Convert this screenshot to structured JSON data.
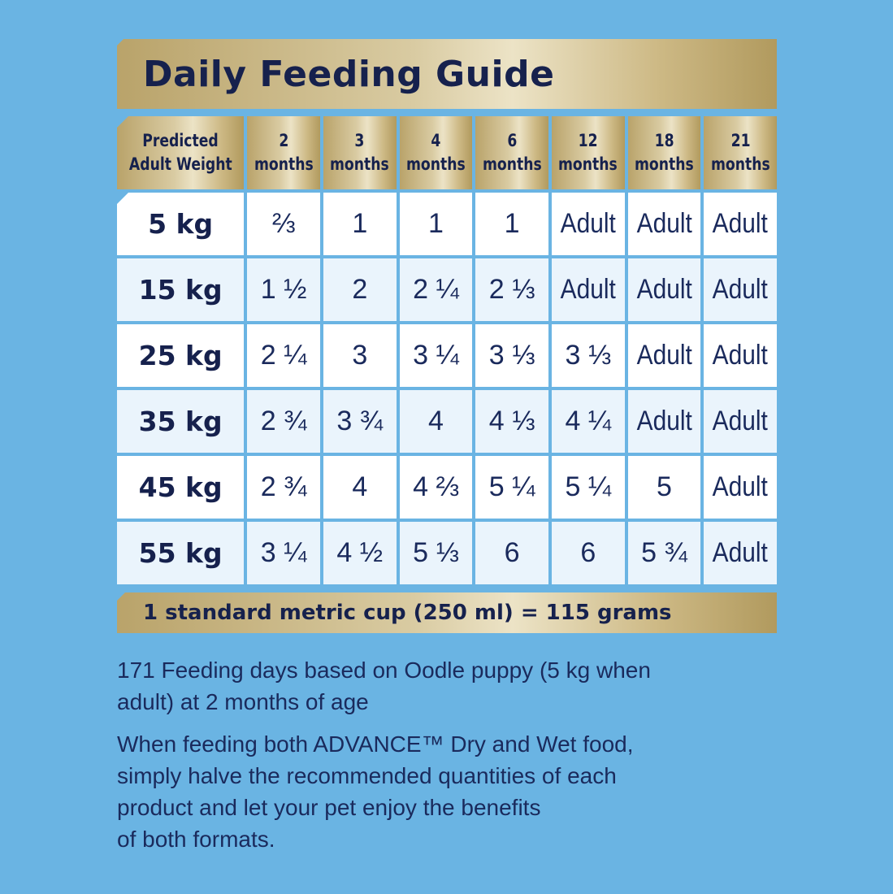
{
  "title": "Daily Feeding Guide",
  "table": {
    "header_first_line1": "Predicted",
    "header_first_line2": "Adult Weight",
    "columns": [
      {
        "num": "2",
        "unit": "months"
      },
      {
        "num": "3",
        "unit": "months"
      },
      {
        "num": "4",
        "unit": "months"
      },
      {
        "num": "6",
        "unit": "months"
      },
      {
        "num": "12",
        "unit": "months"
      },
      {
        "num": "18",
        "unit": "months"
      },
      {
        "num": "21",
        "unit": "months"
      }
    ],
    "rows": [
      {
        "weight": "5 kg",
        "values": [
          "⅔",
          "1",
          "1",
          "1",
          "Adult",
          "Adult",
          "Adult"
        ]
      },
      {
        "weight": "15 kg",
        "values": [
          "1 ½",
          "2",
          "2 ¼",
          "2 ⅓",
          "Adult",
          "Adult",
          "Adult"
        ]
      },
      {
        "weight": "25 kg",
        "values": [
          "2 ¼",
          "3",
          "3 ¼",
          "3 ⅓",
          "3 ⅓",
          "Adult",
          "Adult"
        ]
      },
      {
        "weight": "35 kg",
        "values": [
          "2 ¾",
          "3 ¾",
          "4",
          "4 ⅓",
          "4 ¼",
          "Adult",
          "Adult"
        ]
      },
      {
        "weight": "45 kg",
        "values": [
          "2 ¾",
          "4",
          "4 ⅔",
          "5 ¼",
          "5 ¼",
          "5",
          "Adult"
        ]
      },
      {
        "weight": "55 kg",
        "values": [
          "3 ¼",
          "4 ½",
          "5 ⅓",
          "6",
          "6",
          "5 ¾",
          "Adult"
        ]
      }
    ]
  },
  "cup_note": "1 standard metric cup (250 ml) = 115 grams",
  "notes": [
    "171 Feeding days based on Oodle puppy (5 kg when\nadult) at 2 months of age",
    "When feeding both ADVANCE™ Dry and Wet food,\nsimply halve the recommended quantities of each\nproduct and let your pet enjoy the benefits\nof both formats."
  ],
  "colors": {
    "background": "#6ab4e3",
    "navy_text": "#16214d",
    "gold": "#d9cba2"
  }
}
